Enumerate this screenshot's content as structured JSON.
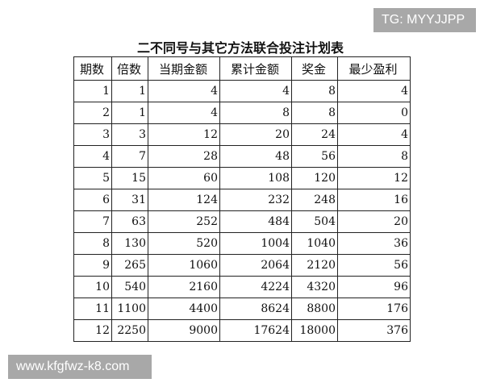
{
  "title": "二不同号与其它方法联合投注计划表",
  "watermark_top": "TG: MYYJJPP",
  "watermark_bottom": "www.kfgfwz-k8.com",
  "table": {
    "headers": [
      "期数",
      "倍数",
      "当期金额",
      "累计金额",
      "奖金",
      "最少盈利"
    ],
    "rows": [
      [
        "1",
        "1",
        "4",
        "4",
        "8",
        "4"
      ],
      [
        "2",
        "1",
        "4",
        "8",
        "8",
        "0"
      ],
      [
        "3",
        "3",
        "12",
        "20",
        "24",
        "4"
      ],
      [
        "4",
        "7",
        "28",
        "48",
        "56",
        "8"
      ],
      [
        "5",
        "15",
        "60",
        "108",
        "120",
        "12"
      ],
      [
        "6",
        "31",
        "124",
        "232",
        "248",
        "16"
      ],
      [
        "7",
        "63",
        "252",
        "484",
        "504",
        "20"
      ],
      [
        "8",
        "130",
        "520",
        "1004",
        "1040",
        "36"
      ],
      [
        "9",
        "265",
        "1060",
        "2064",
        "2120",
        "56"
      ],
      [
        "10",
        "540",
        "2160",
        "4224",
        "4320",
        "96"
      ],
      [
        "11",
        "1100",
        "4400",
        "8624",
        "8800",
        "176"
      ],
      [
        "12",
        "2250",
        "9000",
        "17624",
        "18000",
        "376"
      ]
    ]
  }
}
